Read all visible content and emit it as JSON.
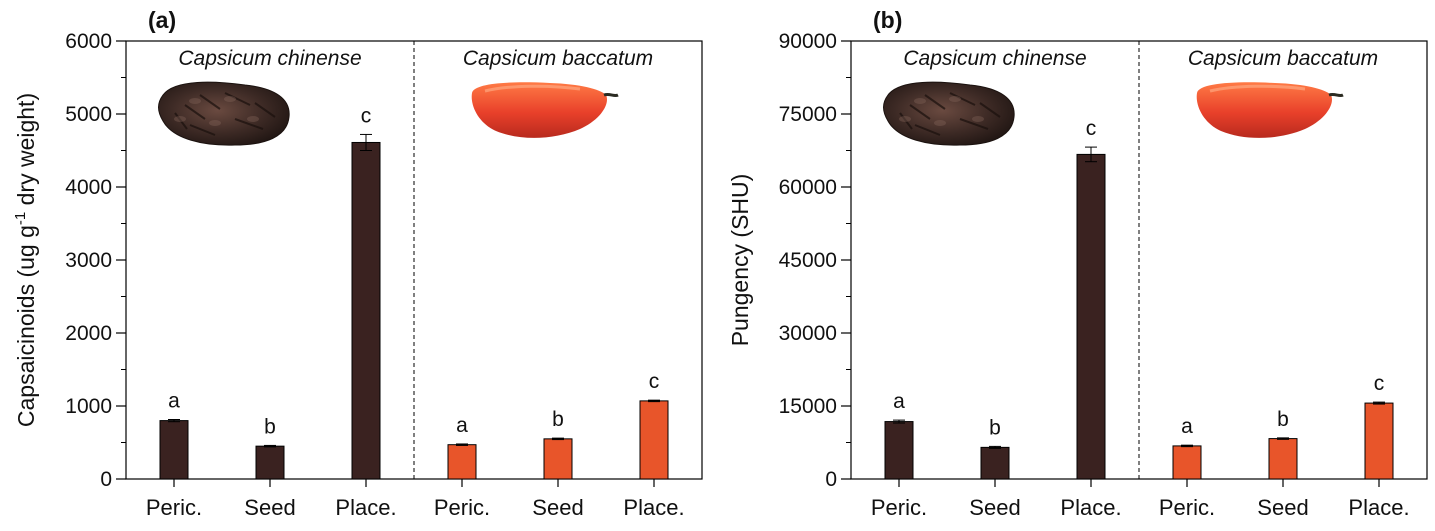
{
  "colors": {
    "chinense_bar": "#3a2220",
    "baccatum_bar": "#e8552a",
    "axis": "#000000"
  },
  "chart_data": [
    {
      "type": "bar",
      "panel_label": "(a)",
      "ylabel": "Capsaicinoids (ug g",
      "ylabel_sup": "-1",
      "ylabel_tail": " dry weight)",
      "ylim": [
        0,
        6000
      ],
      "yticks": [
        0,
        1000,
        2000,
        3000,
        4000,
        5000,
        6000
      ],
      "grid": false,
      "groups": [
        {
          "name": "Capsicum chinense",
          "categories": [
            "Peric.",
            "Seed",
            "Place."
          ],
          "values": [
            800,
            450,
            4610
          ],
          "errors": [
            15,
            10,
            110
          ],
          "letters": [
            "a",
            "b",
            "c"
          ],
          "color_key": "chinense_bar",
          "image": "dried-dark-chili-photo"
        },
        {
          "name": "Capsicum baccatum",
          "categories": [
            "Peric.",
            "Seed",
            "Place."
          ],
          "values": [
            470,
            550,
            1070
          ],
          "errors": [
            10,
            10,
            10
          ],
          "letters": [
            "a",
            "b",
            "c"
          ],
          "color_key": "baccatum_bar",
          "image": "red-chili-photo"
        }
      ]
    },
    {
      "type": "bar",
      "panel_label": "(b)",
      "ylabel": "Pungency (SHU)",
      "ylim": [
        0,
        90000
      ],
      "yticks": [
        0,
        15000,
        30000,
        45000,
        60000,
        75000,
        90000
      ],
      "grid": false,
      "groups": [
        {
          "name": "Capsicum chinense",
          "categories": [
            "Peric.",
            "Seed",
            "Place."
          ],
          "values": [
            11800,
            6500,
            66700
          ],
          "errors": [
            300,
            200,
            1500
          ],
          "letters": [
            "a",
            "b",
            "c"
          ],
          "color_key": "chinense_bar",
          "image": "dried-dark-chili-photo"
        },
        {
          "name": "Capsicum baccatum",
          "categories": [
            "Peric.",
            "Seed",
            "Place."
          ],
          "values": [
            6800,
            8300,
            15600
          ],
          "errors": [
            150,
            150,
            200
          ],
          "letters": [
            "a",
            "b",
            "c"
          ],
          "color_key": "baccatum_bar",
          "image": "red-chili-photo"
        }
      ]
    }
  ]
}
